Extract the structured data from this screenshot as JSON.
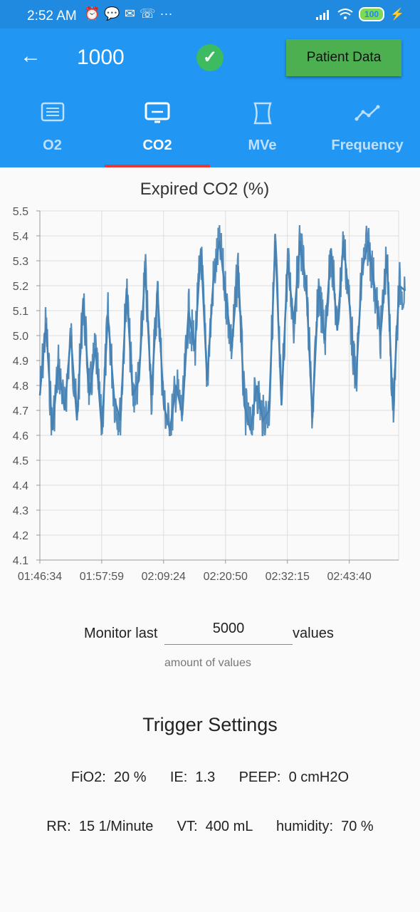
{
  "status": {
    "time": "2:52 AM",
    "battery": "100",
    "icons": [
      "alarm-icon",
      "wechat-icon",
      "message-icon",
      "missed-call-icon",
      "more-dots-icon",
      "signal-icon",
      "wifi-icon",
      "charging-icon"
    ]
  },
  "appbar": {
    "title": "1000",
    "patient_button": "Patient Data",
    "back_icon": "arrow-left-icon",
    "status_icon": "check-circle-icon"
  },
  "tabs": [
    {
      "label": "O2",
      "icon": "list-icon",
      "active": false
    },
    {
      "label": "CO2",
      "icon": "monitor-icon",
      "active": true
    },
    {
      "label": "MVe",
      "icon": "hourglass-icon",
      "active": false
    },
    {
      "label": "Frequency",
      "icon": "trend-line-icon",
      "active": false
    }
  ],
  "chart_data": {
    "type": "line",
    "title": "Expired CO2 (%)",
    "xlabel": "",
    "ylabel": "",
    "ylim": [
      4.1,
      5.5
    ],
    "yticks": [
      "5.5",
      "5.4",
      "5.3",
      "5.2",
      "5.1",
      "5.0",
      "4.9",
      "4.8",
      "4.7",
      "4.6",
      "4.5",
      "4.4",
      "4.3",
      "4.2",
      "4.1"
    ],
    "xticks": [
      "01:46:34",
      "01:57:59",
      "02:09:24",
      "02:20:50",
      "02:32:15",
      "02:43:40"
    ],
    "grid": true,
    "color": "#4682b4",
    "series": [
      {
        "x": [
          "01:46:34",
          "01:47:42",
          "01:48:51",
          "01:50:00",
          "01:51:08",
          "01:52:17",
          "01:53:25",
          "01:54:34",
          "01:55:43",
          "01:56:51",
          "01:58:00",
          "01:59:08",
          "02:00:17",
          "02:01:26",
          "02:02:34",
          "02:03:43",
          "02:04:51",
          "02:06:00",
          "02:07:09",
          "02:08:17",
          "02:09:26",
          "02:10:34",
          "02:11:43",
          "02:12:52",
          "02:14:00",
          "02:15:09",
          "02:16:17",
          "02:17:26",
          "02:18:35",
          "02:19:43",
          "02:20:52",
          "02:22:00",
          "02:23:09",
          "02:24:18",
          "02:25:26",
          "02:26:35",
          "02:27:43",
          "02:28:52",
          "02:30:01",
          "02:31:09",
          "02:32:18",
          "02:33:26",
          "02:34:35",
          "02:35:44",
          "02:36:52",
          "02:38:01",
          "02:39:09",
          "02:40:18",
          "02:41:27",
          "02:42:35",
          "02:43:44",
          "02:44:52",
          "02:46:01",
          "02:47:10",
          "02:48:18",
          "02:49:27",
          "02:50:35",
          "02:51:44",
          "02:52:53",
          "02:54:01"
        ],
        "y": [
          4.76,
          5.05,
          4.62,
          4.88,
          4.7,
          5.0,
          4.66,
          5.15,
          4.76,
          4.95,
          4.62,
          5.08,
          4.75,
          4.66,
          5.19,
          4.76,
          4.82,
          5.27,
          4.76,
          5.18,
          4.72,
          4.62,
          4.8,
          4.68,
          5.1,
          4.94,
          5.35,
          4.82,
          5.22,
          5.38,
          5.16,
          4.95,
          5.28,
          4.72,
          4.62,
          4.8,
          4.66,
          4.7,
          5.38,
          4.72,
          5.3,
          5.05,
          5.38,
          5.2,
          4.67,
          5.2,
          4.98,
          5.35,
          5.02,
          5.38,
          5.12,
          4.8,
          5.26,
          5.38,
          5.2,
          5.0,
          5.32,
          4.7,
          5.2,
          5.18
        ]
      }
    ]
  },
  "monitor": {
    "prefix": "Monitor last",
    "value": "5000",
    "suffix": "values",
    "hint": "amount of values"
  },
  "trigger": {
    "title": "Trigger Settings",
    "row1": "FiO2:  20 %      IE:  1.3      PEEP:  0 cmH2O",
    "row2": "RR:  15 1/Minute      VT:  400 mL      humidity:  70 %"
  }
}
